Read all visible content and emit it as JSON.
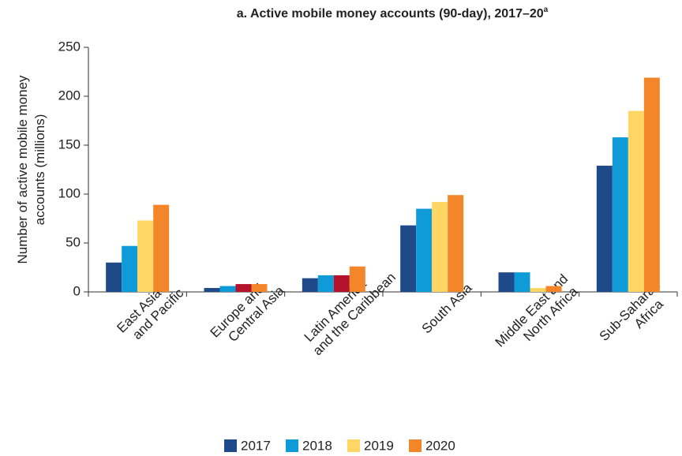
{
  "chart_data": {
    "type": "bar",
    "title": "a. Active mobile money accounts (90-day), 2017–20",
    "title_superscript": "a",
    "y_label": [
      "Number of active mobile money",
      "accounts (millions)"
    ],
    "categories": [
      "East Asia\nand Pacific",
      "Europe and\nCentral Asia",
      "Latin America\nand the Caribbean",
      "South Asia",
      "Middle East and\nNorth Africa",
      "Sub-Saharan\nAfrica"
    ],
    "series": [
      {
        "name": "2017",
        "color": "#1f4a89",
        "values": [
          30,
          4,
          14,
          68,
          20,
          129
        ]
      },
      {
        "name": "2018",
        "color": "#0e9bd8",
        "values": [
          47,
          6,
          17,
          85,
          20,
          158
        ]
      },
      {
        "name": "2019",
        "color": "#ffd564",
        "colors": [
          "#ffd564",
          "#b5122e",
          "#b5122e",
          "#ffd564",
          "#ffd564",
          "#ffd564"
        ],
        "values": [
          73,
          8,
          17,
          92,
          4,
          185
        ]
      },
      {
        "name": "2020",
        "color": "#f4862a",
        "values": [
          89,
          8,
          26,
          99,
          6,
          219
        ]
      }
    ],
    "ylim": [
      0,
      250
    ],
    "yticks": [
      0,
      50,
      100,
      150,
      200,
      250
    ],
    "grid": false,
    "legend": "bottom"
  }
}
